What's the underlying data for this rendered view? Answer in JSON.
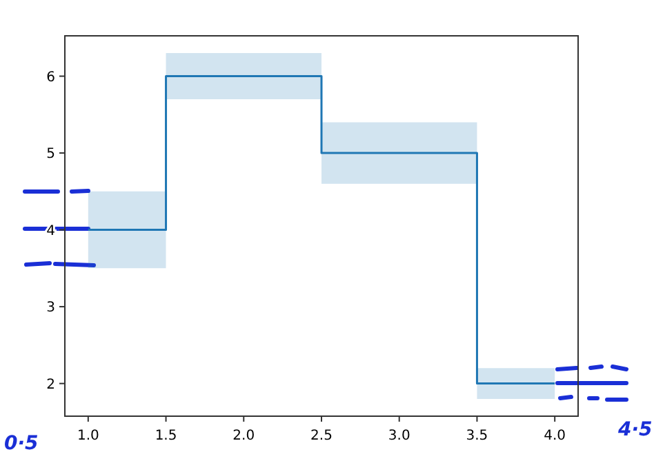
{
  "chart_data": {
    "type": "step",
    "x": [
      1.0,
      1.5,
      2.5,
      3.5,
      4.0
    ],
    "series": [
      {
        "color": "#1f77b4",
        "values": [
          4,
          6,
          5,
          2,
          2
        ],
        "lower": [
          3.5,
          5.7,
          4.6,
          1.8,
          1.8
        ],
        "upper": [
          4.5,
          6.3,
          5.4,
          2.2,
          2.2
        ]
      }
    ],
    "xlim": [
      0.85,
      4.15
    ],
    "ylim": [
      1.575,
      6.525
    ],
    "xticks": [
      {
        "value": 1.0,
        "label": "1.0"
      },
      {
        "value": 1.5,
        "label": "1.5"
      },
      {
        "value": 2.0,
        "label": "2.0"
      },
      {
        "value": 2.5,
        "label": "2.5"
      },
      {
        "value": 3.0,
        "label": "3.0"
      },
      {
        "value": 3.5,
        "label": "3.5"
      },
      {
        "value": 4.0,
        "label": "4.0"
      }
    ],
    "yticks": [
      2,
      3,
      4,
      5,
      6
    ],
    "annotations": [
      "0·5",
      "4·5"
    ]
  }
}
